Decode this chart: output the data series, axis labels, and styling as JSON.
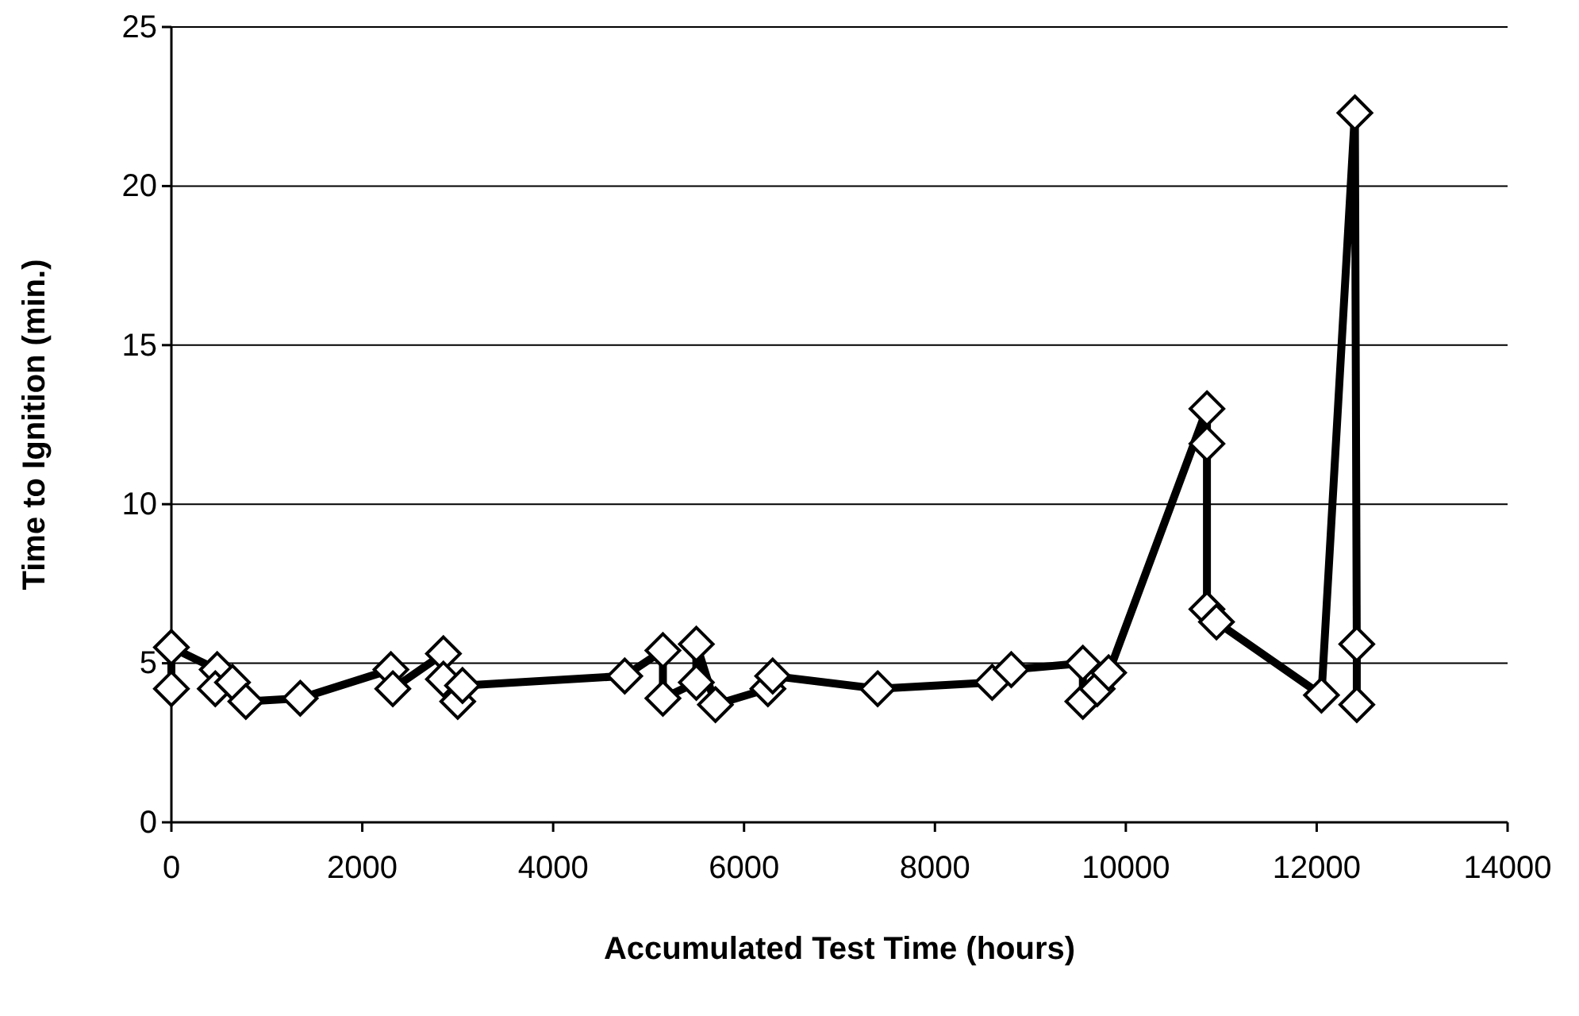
{
  "chart_data": {
    "type": "line",
    "xlabel": "Accumulated Test Time (hours)",
    "ylabel": "Time to Ignition (min.)",
    "x": [
      0,
      0,
      480,
      460,
      640,
      780,
      1350,
      2300,
      2320,
      2850,
      2850,
      3000,
      3050,
      4750,
      5150,
      5150,
      5500,
      5500,
      5700,
      6250,
      6300,
      7400,
      8600,
      8800,
      9550,
      9550,
      9700,
      9820,
      10850,
      10850,
      10850,
      10950,
      12050,
      12400,
      12420,
      12420
    ],
    "series": [
      {
        "color": "#000000",
        "values": [
          4.2,
          5.5,
          4.8,
          4.2,
          4.4,
          3.8,
          3.9,
          4.8,
          4.2,
          5.3,
          4.5,
          3.8,
          4.3,
          4.6,
          5.4,
          3.9,
          4.4,
          5.6,
          3.7,
          4.2,
          4.6,
          4.2,
          4.4,
          4.8,
          5.0,
          3.8,
          4.2,
          4.7,
          13.0,
          11.9,
          6.7,
          6.3,
          4.0,
          22.3,
          5.6,
          3.7
        ]
      }
    ],
    "xlim": [
      0,
      14000
    ],
    "xticks": [
      0,
      2000,
      4000,
      6000,
      8000,
      10000,
      12000,
      14000
    ],
    "ylim": [
      0,
      25
    ],
    "yticks": [
      0,
      5,
      10,
      15,
      20,
      25
    ],
    "grid": "y",
    "marker": "diamond",
    "line_style": "solid"
  }
}
